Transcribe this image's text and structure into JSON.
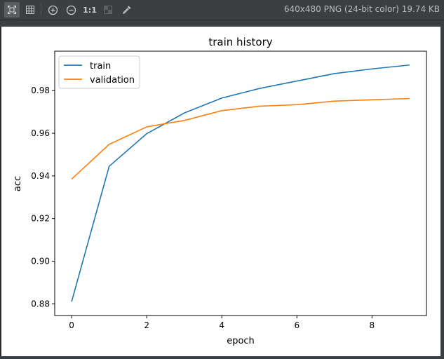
{
  "viewer": {
    "image_info": "640x480 PNG (24-bit color) 19.74 KB",
    "zoom_actual_label": "1:1",
    "tools": [
      {
        "name": "fit-to-window-icon",
        "active": true
      },
      {
        "name": "grid-icon",
        "active": false
      },
      {
        "name": "zoom-in-icon",
        "active": false
      },
      {
        "name": "zoom-out-icon",
        "active": false
      },
      {
        "name": "actual-size",
        "active": false
      },
      {
        "name": "background-toggle-icon",
        "active": false
      },
      {
        "name": "color-picker-icon",
        "active": false
      }
    ]
  },
  "chart_data": {
    "type": "line",
    "title": "train history",
    "xlabel": "epoch",
    "ylabel": "acc",
    "x": [
      0,
      1,
      2,
      3,
      4,
      5,
      6,
      7,
      8,
      9
    ],
    "xlim": [
      -0.45,
      9.45
    ],
    "ylim": [
      0.8745,
      0.9985
    ],
    "xticks": [
      0,
      2,
      4,
      6,
      8
    ],
    "xtick_labels": [
      "0",
      "2",
      "4",
      "6",
      "8"
    ],
    "yticks": [
      0.88,
      0.9,
      0.92,
      0.94,
      0.96,
      0.98
    ],
    "ytick_labels": [
      "0.88",
      "0.90",
      "0.92",
      "0.94",
      "0.96",
      "0.98"
    ],
    "grid": false,
    "legend_position": "top-left",
    "series": [
      {
        "name": "train",
        "color": "#1f77b4",
        "values": [
          0.881,
          0.9445,
          0.9598,
          0.9695,
          0.9765,
          0.981,
          0.9845,
          0.988,
          0.9902,
          0.992
        ]
      },
      {
        "name": "validation",
        "color": "#ff7f0e",
        "values": [
          0.9385,
          0.9548,
          0.963,
          0.966,
          0.9706,
          0.9727,
          0.9734,
          0.9751,
          0.9757,
          0.9763
        ]
      }
    ]
  }
}
